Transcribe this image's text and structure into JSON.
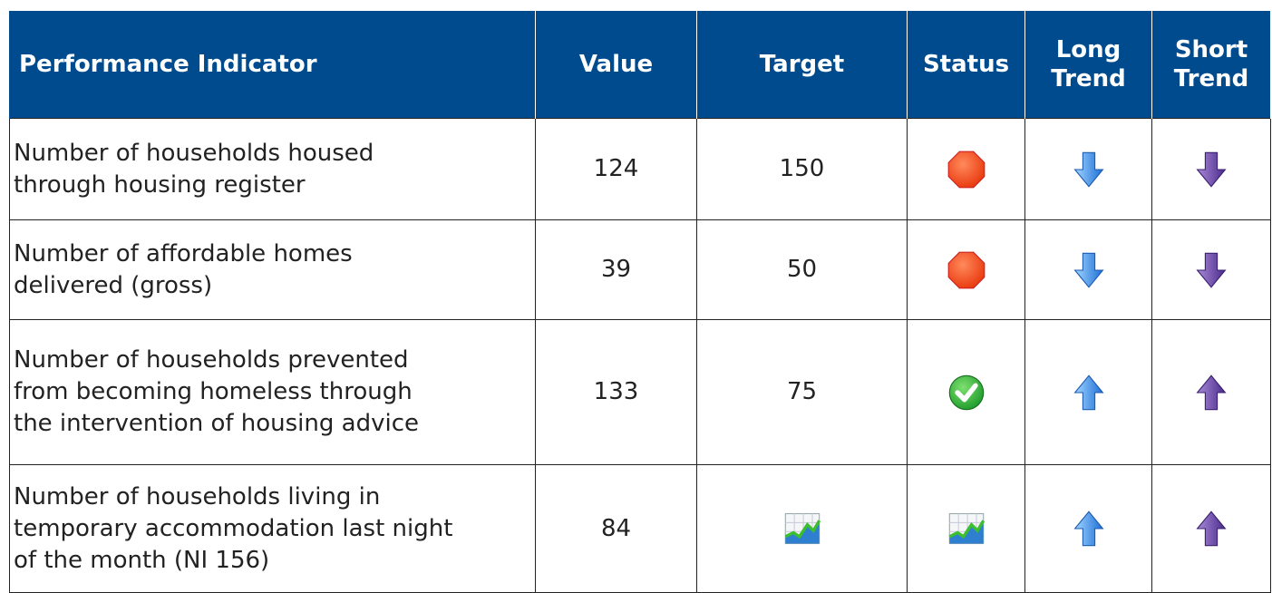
{
  "table": {
    "header": [
      "Performance Indicator",
      "Value",
      "Target",
      "Status",
      [
        "Long",
        "Trend"
      ],
      [
        "Short",
        "Trend"
      ]
    ],
    "rows": [
      {
        "indicator": [
          "Number of households housed",
          "through housing register"
        ],
        "value": "124",
        "target": "150"
      },
      {
        "indicator": [
          "Number of affordable homes",
          "delivered (gross)"
        ],
        "value": "39",
        "target": "50"
      },
      {
        "indicator": [
          "Number of households prevented",
          "from becoming homeless through",
          "the intervention of housing advice"
        ],
        "value": "133",
        "target": "75"
      },
      {
        "indicator": [
          "Number of households living in",
          "temporary accommodation last night",
          "of the month (NI 156)"
        ],
        "value": "84"
      }
    ]
  }
}
